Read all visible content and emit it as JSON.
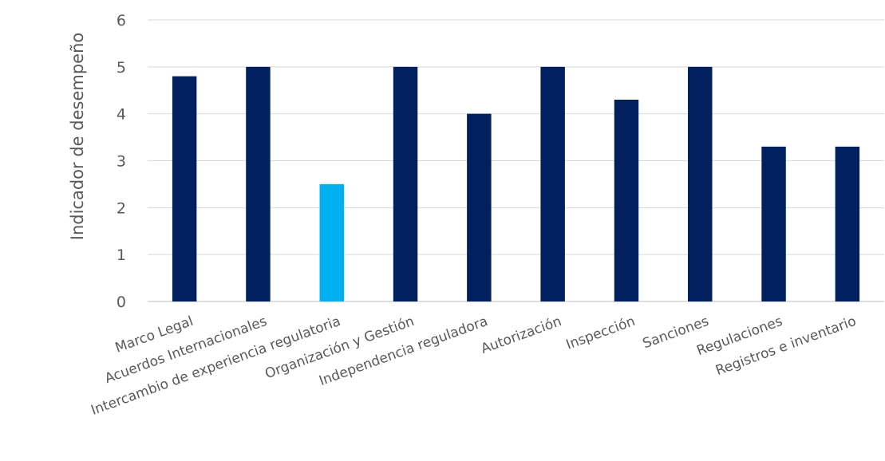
{
  "chart_data": {
    "type": "bar",
    "title": "",
    "xlabel": "",
    "ylabel": "Indicador de desempeño",
    "ylim": [
      0,
      6
    ],
    "yticks": [
      "0",
      "1",
      "2",
      "3",
      "4",
      "5",
      "6"
    ],
    "grid": true,
    "legend": "none",
    "categories": [
      "Marco Legal",
      "Acuerdos Internacionales",
      "Intercambio de experiencia regulatoria",
      "Organización y Gestión",
      "Independencia reguladora",
      "Autorización",
      "Inspección",
      "Sanciones",
      "Regulaciones",
      "Registros e inventario"
    ],
    "values": [
      4.8,
      5.0,
      2.5,
      5.0,
      4.0,
      5.0,
      4.3,
      5.0,
      3.3,
      3.3
    ],
    "colors": {
      "default": "#002060",
      "highlight": "#00b0f0",
      "highlight_index": 2
    }
  }
}
